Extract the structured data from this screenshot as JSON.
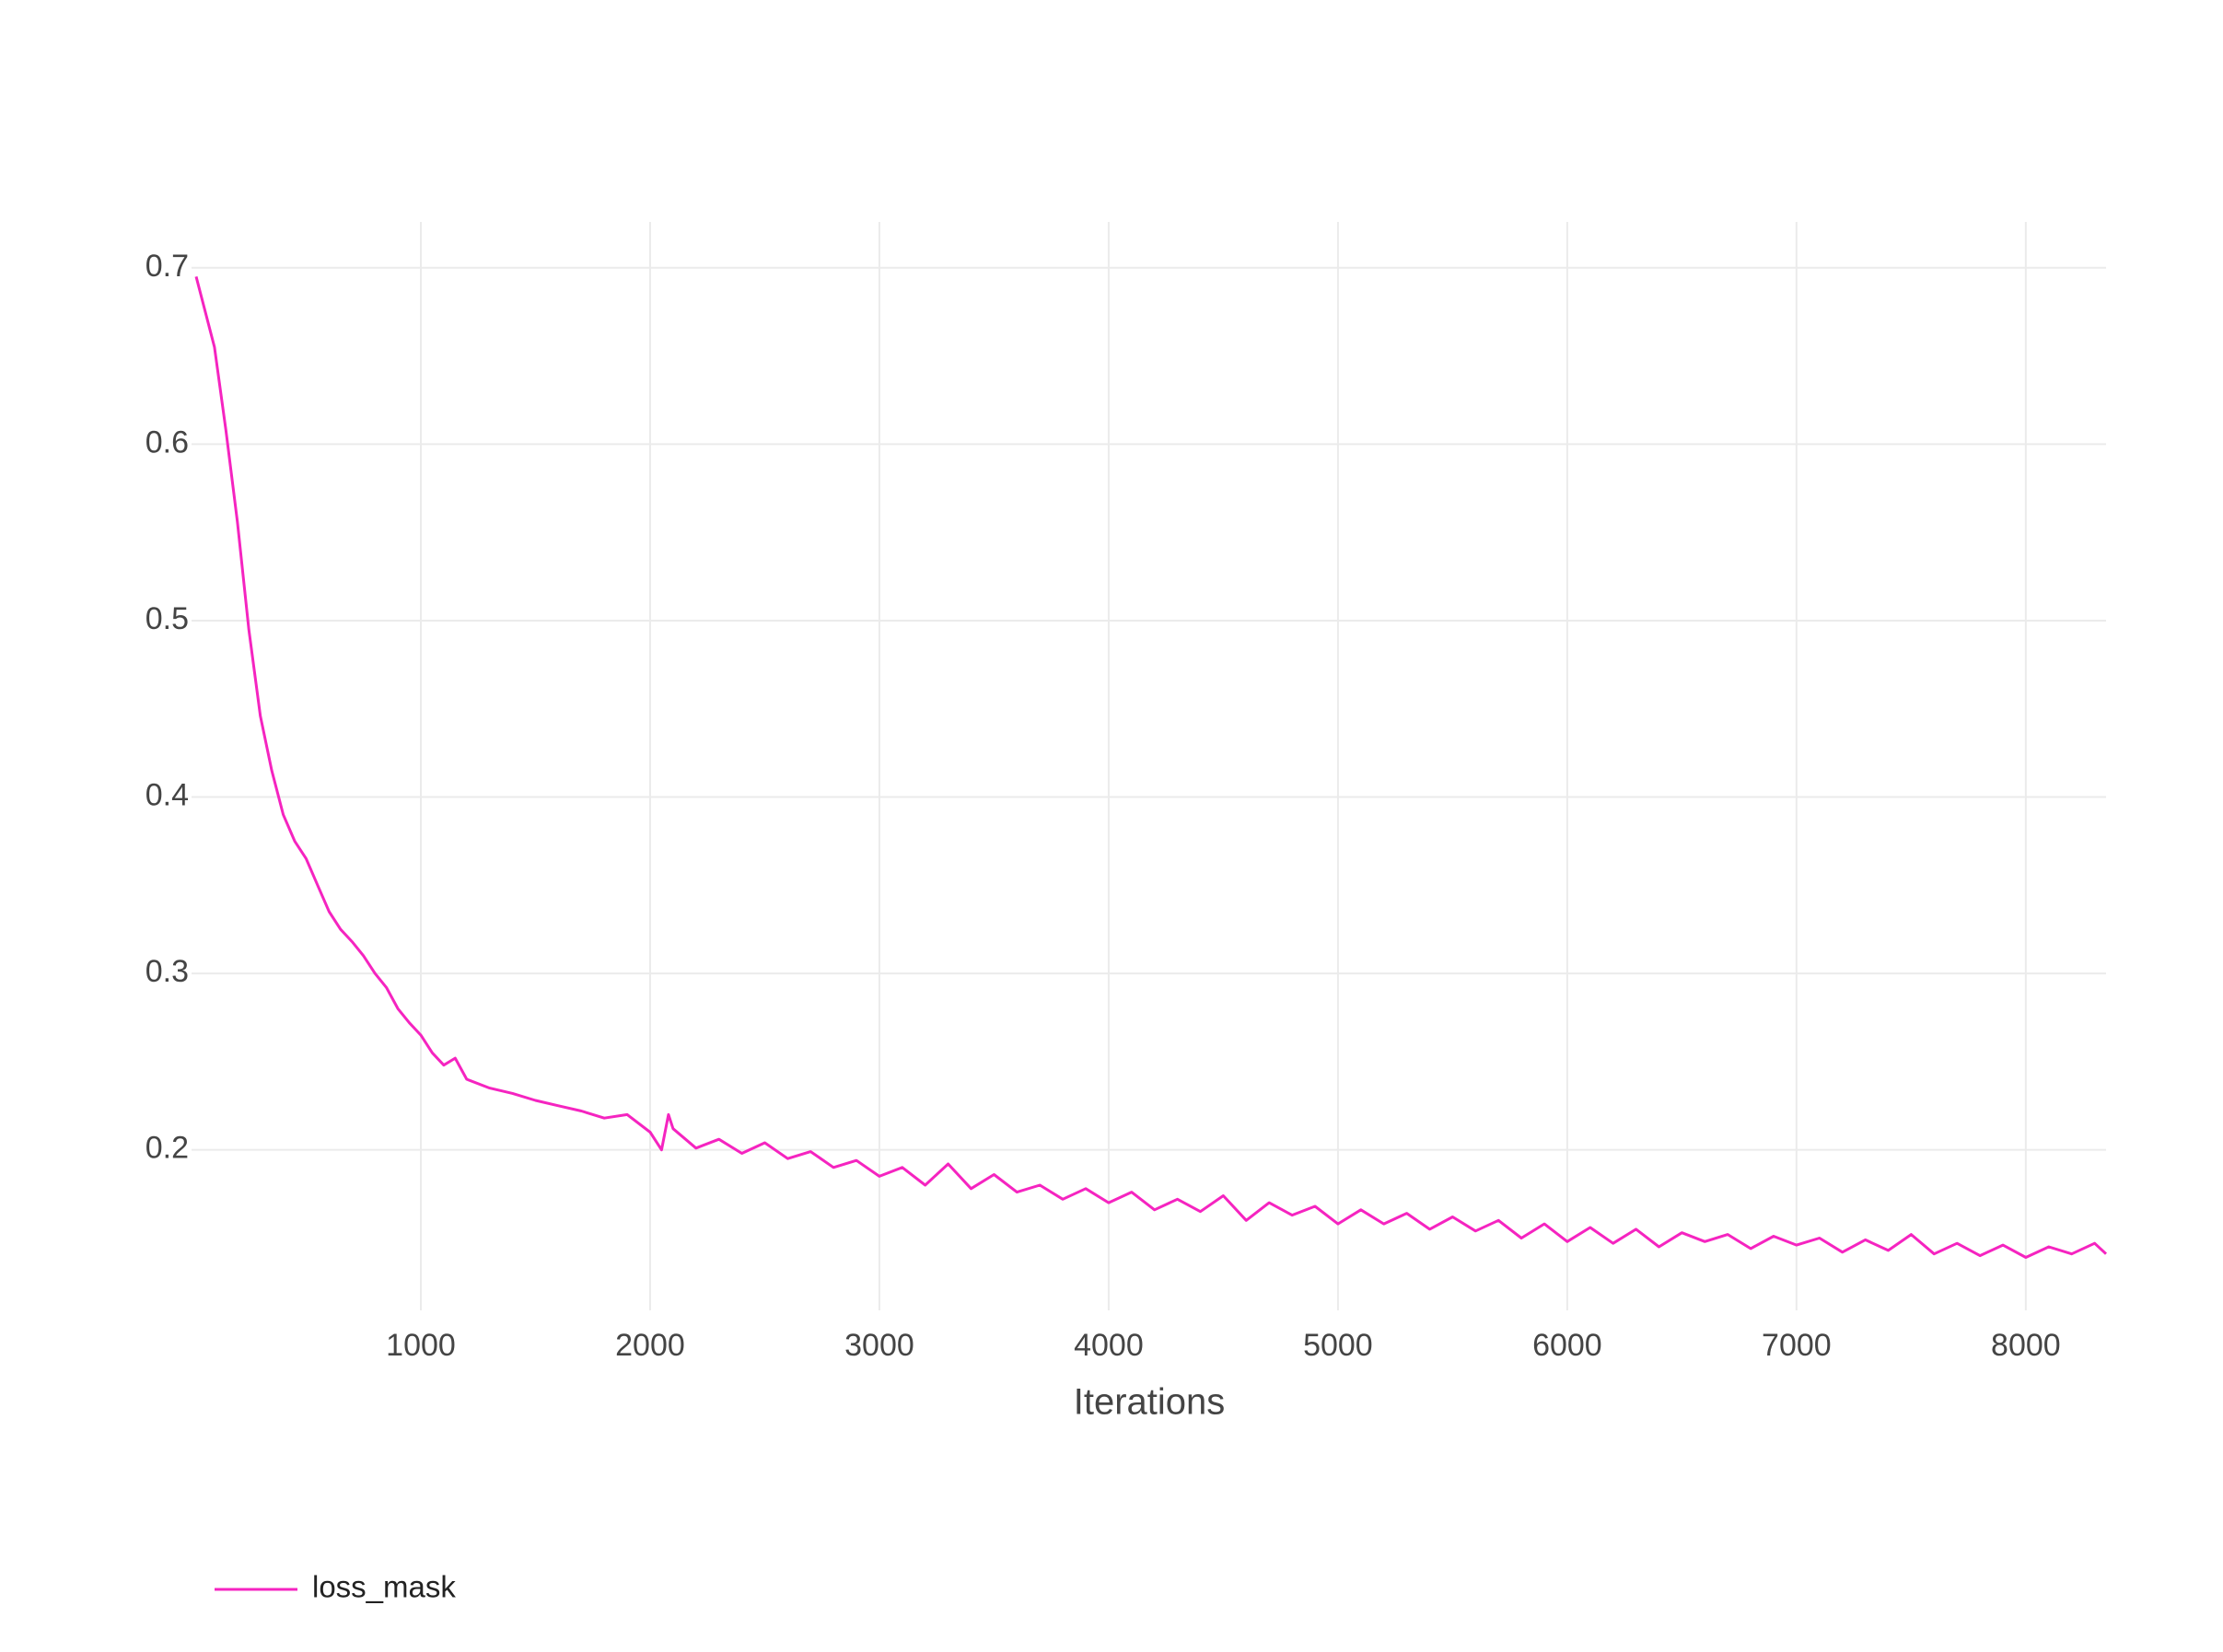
{
  "chart_data": {
    "type": "line",
    "x_label": "Iterations",
    "x": [
      20,
      100,
      150,
      200,
      250,
      300,
      350,
      400,
      450,
      500,
      550,
      600,
      650,
      700,
      750,
      800,
      850,
      900,
      950,
      1000,
      1050,
      1100,
      1150,
      1200,
      1300,
      1400,
      1500,
      1600,
      1700,
      1800,
      1900,
      2000,
      2050,
      2080,
      2100,
      2200,
      2300,
      2400,
      2500,
      2600,
      2700,
      2800,
      2900,
      3000,
      3100,
      3200,
      3300,
      3400,
      3500,
      3600,
      3700,
      3800,
      3900,
      4000,
      4100,
      4200,
      4300,
      4400,
      4500,
      4600,
      4700,
      4800,
      4900,
      5000,
      5100,
      5200,
      5300,
      5400,
      5500,
      5600,
      5700,
      5800,
      5900,
      6000,
      6100,
      6200,
      6300,
      6400,
      6500,
      6600,
      6700,
      6800,
      6900,
      7000,
      7100,
      7200,
      7300,
      7400,
      7500,
      7600,
      7700,
      7800,
      7900,
      8000,
      8100,
      8200,
      8300,
      8350
    ],
    "series": [
      {
        "name": "loss_mask",
        "color": "#f524c0",
        "values": [
          0.695,
          0.655,
          0.608,
          0.556,
          0.495,
          0.446,
          0.415,
          0.39,
          0.375,
          0.365,
          0.35,
          0.335,
          0.325,
          0.318,
          0.31,
          0.3,
          0.292,
          0.28,
          0.272,
          0.265,
          0.255,
          0.248,
          0.252,
          0.24,
          0.235,
          0.232,
          0.228,
          0.225,
          0.222,
          0.218,
          0.22,
          0.21,
          0.2,
          0.22,
          0.212,
          0.201,
          0.206,
          0.198,
          0.204,
          0.195,
          0.199,
          0.19,
          0.194,
          0.185,
          0.19,
          0.18,
          0.192,
          0.178,
          0.186,
          0.176,
          0.18,
          0.172,
          0.178,
          0.17,
          0.176,
          0.166,
          0.172,
          0.165,
          0.174,
          0.16,
          0.17,
          0.163,
          0.168,
          0.158,
          0.166,
          0.158,
          0.164,
          0.155,
          0.162,
          0.154,
          0.16,
          0.15,
          0.158,
          0.148,
          0.156,
          0.147,
          0.155,
          0.145,
          0.153,
          0.148,
          0.152,
          0.144,
          0.151,
          0.146,
          0.15,
          0.142,
          0.149,
          0.143,
          0.152,
          0.141,
          0.147,
          0.14,
          0.146,
          0.139,
          0.145,
          0.141,
          0.147,
          0.141
        ]
      }
    ],
    "xlim": [
      0,
      8350
    ],
    "xticks": [
      1000,
      2000,
      3000,
      4000,
      5000,
      6000,
      7000,
      8000
    ],
    "ylim": [
      0.109,
      0.726
    ],
    "yticks": [
      0.2,
      0.3,
      0.4,
      0.5,
      0.6,
      0.7
    ],
    "grid": true,
    "legend": "bottom-left"
  }
}
